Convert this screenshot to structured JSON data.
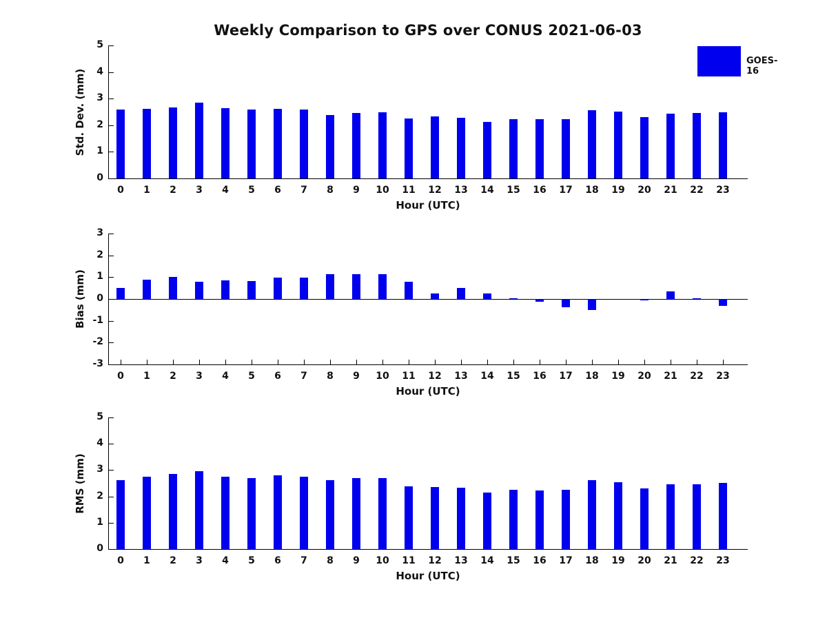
{
  "title": "Weekly Comparison to GPS over CONUS 2021-06-03",
  "legend": {
    "label": "GOES-16",
    "color": "#0000EE",
    "position": "top-right-outside"
  },
  "bar_color": "#0000EE",
  "background": "#FFFFFF",
  "chart_data": [
    {
      "id": "std-dev",
      "type": "bar",
      "title": "",
      "xlabel": "Hour (UTC)",
      "ylabel": "Std. Dev. (mm)",
      "categories": [
        "0",
        "1",
        "2",
        "3",
        "4",
        "5",
        "6",
        "7",
        "8",
        "9",
        "10",
        "11",
        "12",
        "13",
        "14",
        "15",
        "16",
        "17",
        "18",
        "19",
        "20",
        "21",
        "22",
        "23"
      ],
      "values": [
        2.58,
        2.62,
        2.68,
        2.85,
        2.63,
        2.6,
        2.62,
        2.59,
        2.38,
        2.47,
        2.48,
        2.26,
        2.33,
        2.28,
        2.13,
        2.24,
        2.22,
        2.22,
        2.57,
        2.52,
        2.3,
        2.43,
        2.46,
        2.48
      ],
      "ylim": [
        0,
        5
      ],
      "yticks": [
        0,
        1,
        2,
        3,
        4,
        5
      ],
      "grid": false,
      "series_name": "GOES-16"
    },
    {
      "id": "bias",
      "type": "bar",
      "title": "",
      "xlabel": "Hour (UTC)",
      "ylabel": "Bias (mm)",
      "categories": [
        "0",
        "1",
        "2",
        "3",
        "4",
        "5",
        "6",
        "7",
        "8",
        "9",
        "10",
        "11",
        "12",
        "13",
        "14",
        "15",
        "16",
        "17",
        "18",
        "19",
        "20",
        "21",
        "22",
        "23"
      ],
      "values": [
        0.52,
        0.88,
        1.01,
        0.79,
        0.84,
        0.81,
        0.99,
        0.99,
        1.14,
        1.15,
        1.15,
        0.78,
        0.26,
        0.52,
        0.25,
        0.04,
        -0.12,
        -0.39,
        -0.52,
        0.0,
        -0.05,
        0.34,
        0.04,
        -0.32
      ],
      "ylim": [
        -3,
        3
      ],
      "yticks": [
        -3,
        -2,
        -1,
        0,
        1,
        2,
        3
      ],
      "grid": false,
      "series_name": "GOES-16"
    },
    {
      "id": "rms",
      "type": "bar",
      "title": "",
      "xlabel": "Hour (UTC)",
      "ylabel": "RMS (mm)",
      "categories": [
        "0",
        "1",
        "2",
        "3",
        "4",
        "5",
        "6",
        "7",
        "8",
        "9",
        "10",
        "11",
        "12",
        "13",
        "14",
        "15",
        "16",
        "17",
        "18",
        "19",
        "20",
        "21",
        "22",
        "23"
      ],
      "values": [
        2.61,
        2.75,
        2.85,
        2.96,
        2.75,
        2.7,
        2.8,
        2.75,
        2.61,
        2.7,
        2.7,
        2.39,
        2.36,
        2.33,
        2.15,
        2.25,
        2.23,
        2.25,
        2.61,
        2.54,
        2.31,
        2.47,
        2.47,
        2.51
      ],
      "ylim": [
        0,
        5
      ],
      "yticks": [
        0,
        1,
        2,
        3,
        4,
        5
      ],
      "grid": false,
      "series_name": "GOES-16"
    }
  ]
}
